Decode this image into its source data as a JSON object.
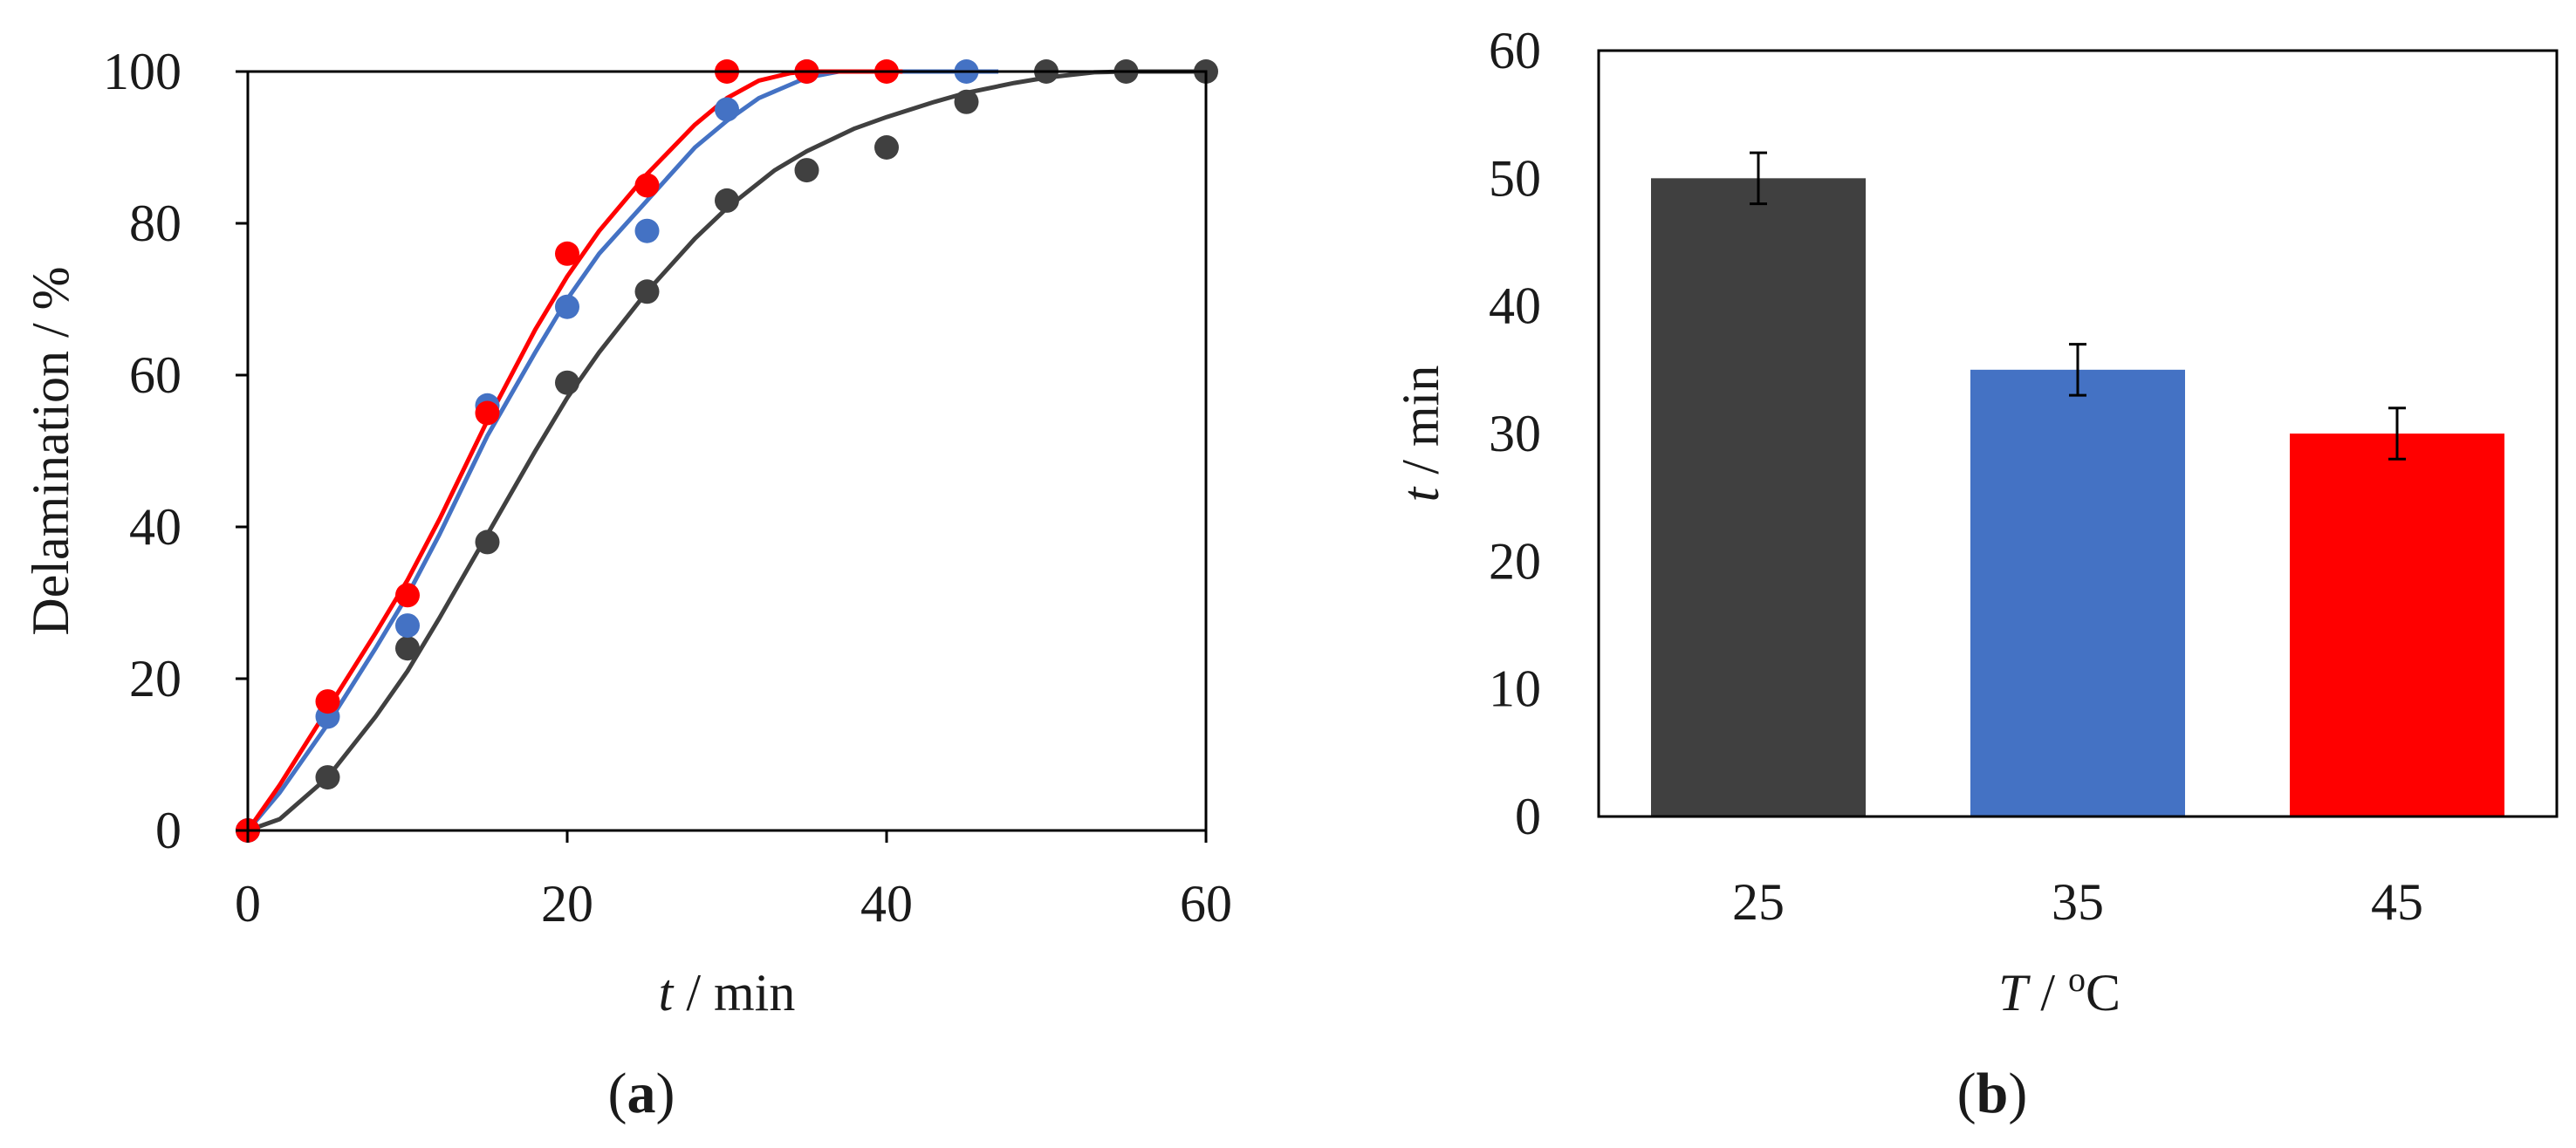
{
  "chart_data": [
    {
      "panel_label": "(a)",
      "panel_open": "(",
      "panel_letter": "a",
      "panel_close": ")",
      "type": "line",
      "xlabel_var": "t",
      "xlabel_unit": " / min",
      "ylabel": "Delamination / %",
      "xlim": [
        0,
        60
      ],
      "ylim": [
        0,
        100
      ],
      "xticks": [
        "0",
        "20",
        "40",
        "60"
      ],
      "yticks": [
        "0",
        "20",
        "40",
        "60",
        "80",
        "100"
      ],
      "series": [
        {
          "name": "25 °C",
          "color": "#404040",
          "points": [
            [
              0,
              0
            ],
            [
              5,
              7
            ],
            [
              10,
              24
            ],
            [
              15,
              38
            ],
            [
              20,
              59
            ],
            [
              25,
              71
            ],
            [
              30,
              83
            ],
            [
              35,
              87
            ],
            [
              40,
              90
            ],
            [
              45,
              96
            ],
            [
              50,
              100
            ],
            [
              55,
              100
            ],
            [
              60,
              100
            ]
          ],
          "fit": [
            [
              0,
              0
            ],
            [
              2,
              1.5
            ],
            [
              5,
              7
            ],
            [
              8,
              15
            ],
            [
              10,
              21
            ],
            [
              12,
              28
            ],
            [
              15,
              39
            ],
            [
              18,
              50
            ],
            [
              20,
              57
            ],
            [
              22,
              63
            ],
            [
              25,
              71
            ],
            [
              28,
              78
            ],
            [
              30,
              82
            ],
            [
              33,
              87
            ],
            [
              35,
              89.5
            ],
            [
              38,
              92.5
            ],
            [
              40,
              94
            ],
            [
              43,
              96
            ],
            [
              45,
              97.2
            ],
            [
              48,
              98.5
            ],
            [
              50,
              99.2
            ],
            [
              53,
              99.9
            ],
            [
              55,
              100
            ],
            [
              60,
              100
            ]
          ]
        },
        {
          "name": "35 °C",
          "color": "#4472c4",
          "points": [
            [
              0,
              0
            ],
            [
              5,
              15
            ],
            [
              10,
              27
            ],
            [
              15,
              56
            ],
            [
              20,
              69
            ],
            [
              25,
              79
            ],
            [
              30,
              95
            ],
            [
              35,
              100
            ],
            [
              45,
              100
            ]
          ],
          "fit": [
            [
              0,
              0
            ],
            [
              2,
              5
            ],
            [
              5,
              14
            ],
            [
              8,
              24
            ],
            [
              10,
              31
            ],
            [
              12,
              39
            ],
            [
              15,
              52
            ],
            [
              18,
              63
            ],
            [
              20,
              70
            ],
            [
              22,
              76
            ],
            [
              25,
              83
            ],
            [
              28,
              90
            ],
            [
              30,
              93.5
            ],
            [
              32,
              96.5
            ],
            [
              35,
              99.2
            ],
            [
              37,
              100
            ],
            [
              47,
              100
            ]
          ]
        },
        {
          "name": "45 °C",
          "color": "#ff0000",
          "points": [
            [
              0,
              0
            ],
            [
              5,
              17
            ],
            [
              10,
              31
            ],
            [
              15,
              55
            ],
            [
              20,
              76
            ],
            [
              25,
              85
            ],
            [
              30,
              100
            ],
            [
              35,
              100
            ],
            [
              40,
              100
            ]
          ],
          "fit": [
            [
              0,
              0
            ],
            [
              2,
              6
            ],
            [
              5,
              16
            ],
            [
              8,
              26
            ],
            [
              10,
              33
            ],
            [
              12,
              41
            ],
            [
              15,
              54
            ],
            [
              18,
              66
            ],
            [
              20,
              73
            ],
            [
              22,
              79
            ],
            [
              25,
              86.5
            ],
            [
              28,
              93
            ],
            [
              30,
              96.5
            ],
            [
              32,
              98.8
            ],
            [
              34,
              99.8
            ],
            [
              35,
              100
            ],
            [
              41,
              100
            ]
          ]
        }
      ]
    },
    {
      "panel_label": "(b)",
      "panel_open": "(",
      "panel_letter": "b",
      "panel_close": ")",
      "type": "bar",
      "xlabel_var": "T",
      "xlabel_unit": " / ",
      "xlabel_sup": "o",
      "xlabel_c": "C",
      "ylabel_var": "t",
      "ylabel_unit": " / min",
      "ylim": [
        0,
        60
      ],
      "yticks": [
        "0",
        "10",
        "20",
        "30",
        "40",
        "50",
        "60"
      ],
      "categories": [
        "25",
        "35",
        "45"
      ],
      "values": [
        50,
        35,
        30
      ],
      "errors": [
        2,
        2,
        2
      ],
      "colors": [
        "#404040",
        "#4472c4",
        "#ff0000"
      ]
    }
  ]
}
